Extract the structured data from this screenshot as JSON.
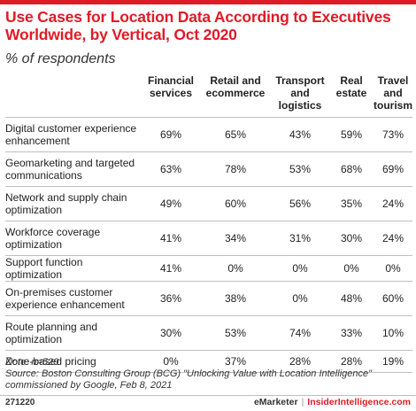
{
  "title": "Use Cases for Location Data According to Executives Worldwide, by Vertical, Oct 2020",
  "subtitle": "% of respondents",
  "chart_data": {
    "type": "table",
    "columns": [
      {
        "line1": "Financial",
        "line2": "services",
        "line3": ""
      },
      {
        "line1": "Retail and",
        "line2": "ecommerce",
        "line3": ""
      },
      {
        "line1": "Transport",
        "line2": "and",
        "line3": "logistics"
      },
      {
        "line1": "Real",
        "line2": "estate",
        "line3": ""
      },
      {
        "line1": "Travel",
        "line2": "and",
        "line3": "tourism"
      }
    ],
    "rows": [
      {
        "line1": "Digital customer experience",
        "line2": "enhancement",
        "values": [
          "69%",
          "65%",
          "43%",
          "59%",
          "73%"
        ]
      },
      {
        "line1": "Geomarketing and targeted",
        "line2": "communications",
        "values": [
          "63%",
          "78%",
          "53%",
          "68%",
          "69%"
        ]
      },
      {
        "line1": "Network and supply chain",
        "line2": "optimization",
        "values": [
          "49%",
          "60%",
          "56%",
          "35%",
          "24%"
        ]
      },
      {
        "line1": "Workforce coverage",
        "line2": "optimization",
        "values": [
          "41%",
          "34%",
          "31%",
          "30%",
          "24%"
        ]
      },
      {
        "line1": "Support function optimization",
        "line2": "",
        "values": [
          "41%",
          "0%",
          "0%",
          "0%",
          "0%"
        ]
      },
      {
        "line1": "On-premises customer",
        "line2": "experience enhancement",
        "values": [
          "36%",
          "38%",
          "0%",
          "48%",
          "60%"
        ]
      },
      {
        "line1": "Route planning and",
        "line2": "optimization",
        "values": [
          "30%",
          "53%",
          "74%",
          "33%",
          "10%"
        ]
      },
      {
        "line1": "Zone-based pricing",
        "line2": "",
        "values": [
          "0%",
          "37%",
          "28%",
          "28%",
          "19%"
        ]
      }
    ]
  },
  "notes": {
    "note": "Note: n=520",
    "source_line1": "Source: Boston Consulting Group (BCG) \"Unlocking Value with Location Intelligence\"",
    "source_line2": "commissioned by Google, Feb 8, 2021"
  },
  "footer": {
    "id": "271220",
    "brand": "eMarketer",
    "separator": "|",
    "brand2": "InsiderIntelligence.com"
  },
  "colors": {
    "accent": "#e01b26",
    "rule": "#bfbfbf",
    "text": "#222222"
  }
}
